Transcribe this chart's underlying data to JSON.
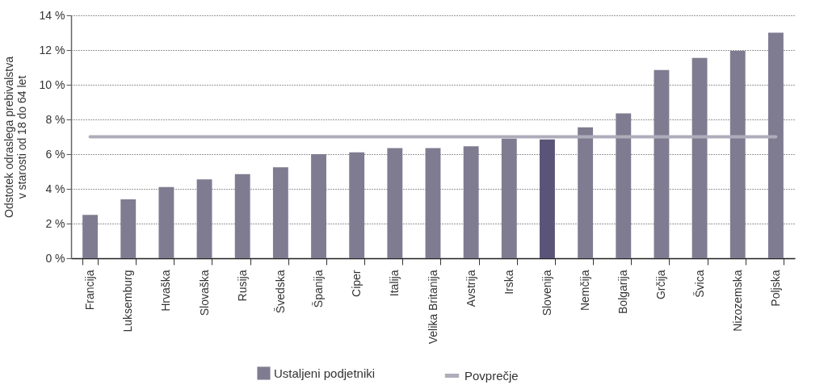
{
  "chart_data": {
    "type": "bar",
    "ylabel": "Odstotek odraslega prebivalstva\nv starosti od 18 do 64 let",
    "categories": [
      "Francija",
      "Luksemburg",
      "Hrvaška",
      "Slovaška",
      "Rusija",
      "Švedska",
      "Španija",
      "Ciper",
      "Italija",
      "Velika Britanija",
      "Avstrija",
      "Irska",
      "Slovenija",
      "Nemčija",
      "Bolgarija",
      "Grčija",
      "Švica",
      "Nizozemska",
      "Poljska"
    ],
    "series": [
      {
        "name": "Ustaljeni podjetniki",
        "color": "#7f7c91",
        "colors": [
          "#7f7c91",
          "#7f7c91",
          "#7f7c91",
          "#7f7c91",
          "#7f7c91",
          "#7f7c91",
          "#7f7c91",
          "#7f7c91",
          "#7f7c91",
          "#7f7c91",
          "#7f7c91",
          "#7f7c91",
          "#5a5478",
          "#7f7c91",
          "#7f7c91",
          "#7f7c91",
          "#7f7c91",
          "#7f7c91",
          "#7f7c91"
        ],
        "values": [
          2.5,
          3.4,
          4.1,
          4.55,
          4.85,
          5.25,
          6.0,
          6.1,
          6.35,
          6.35,
          6.45,
          6.9,
          6.85,
          7.55,
          8.35,
          10.85,
          11.55,
          11.95,
          13.0
        ]
      },
      {
        "name": "Povprečje",
        "type": "line",
        "color": "#aeadbb",
        "values": [
          7,
          7,
          7,
          7,
          7,
          7,
          7,
          7,
          7,
          7,
          7,
          7,
          7,
          7,
          7,
          7,
          7,
          7,
          7
        ]
      }
    ],
    "ylim": [
      0,
      14
    ],
    "yticks": [
      {
        "value": 0,
        "label": "0 %"
      },
      {
        "value": 2,
        "label": "2 %"
      },
      {
        "value": 4,
        "label": "4 %"
      },
      {
        "value": 6,
        "label": "6 %"
      },
      {
        "value": 8,
        "label": "8 %"
      },
      {
        "value": 10,
        "label": "10 %"
      },
      {
        "value": 12,
        "label": "12 %"
      },
      {
        "value": 14,
        "label": "14 %"
      }
    ],
    "grid": "y",
    "legend": "bottom"
  }
}
